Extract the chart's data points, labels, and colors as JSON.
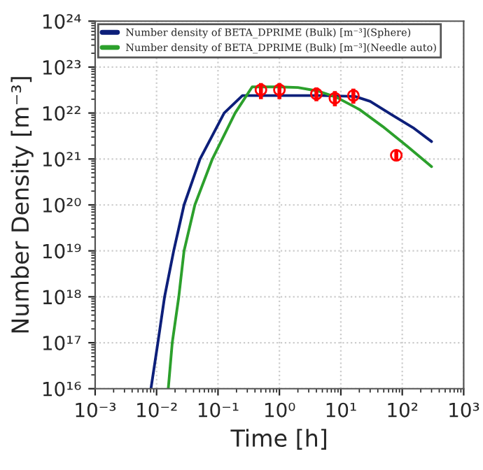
{
  "chart_data": {
    "type": "line",
    "xlabel": "Time [h]",
    "ylabel": "Number Density [m⁻³]",
    "log": "xy",
    "grid": true,
    "legend": "top left",
    "marker": "none",
    "line_style": "solid",
    "xlim": [
      0.001,
      1000
    ],
    "ylim": [
      1e+16,
      1e+24
    ],
    "xticks": [
      {
        "value": 0.001,
        "label": "10⁻³"
      },
      {
        "value": 0.01,
        "label": "10⁻²"
      },
      {
        "value": 0.1,
        "label": "10⁻¹"
      },
      {
        "value": 1,
        "label": "10⁰"
      },
      {
        "value": 10,
        "label": "10¹"
      },
      {
        "value": 100,
        "label": "10²"
      },
      {
        "value": 1000,
        "label": "10³"
      }
    ],
    "yticks": [
      {
        "value": 1e+16,
        "label": "10¹⁶"
      },
      {
        "value": 1e+17,
        "label": "10¹⁷"
      },
      {
        "value": 1e+18,
        "label": "10¹⁸"
      },
      {
        "value": 1e+19,
        "label": "10¹⁹"
      },
      {
        "value": 1e+20,
        "label": "10²⁰"
      },
      {
        "value": 1e+21,
        "label": "10²¹"
      },
      {
        "value": 1e+22,
        "label": "10²²"
      },
      {
        "value": 1e+23,
        "label": "10²³"
      },
      {
        "value": 1e+24,
        "label": "10²⁴"
      }
    ],
    "series": [
      {
        "name": "Number density of BETA_DPRIME (Bulk) [m⁻³](Sphere)",
        "color": "#0d1f7a",
        "x": [
          0.0081,
          0.0105,
          0.0135,
          0.019,
          0.028,
          0.051,
          0.126,
          0.25,
          1,
          5,
          17,
          30,
          69,
          150,
          300
        ],
        "values": [
          1e+16,
          1e+17,
          1e+18,
          1e+19,
          1e+20,
          1e+21,
          1e+22,
          2.4e+22,
          2.4e+22,
          2.4e+22,
          2.3e+22,
          1.8e+22,
          9e+21,
          4.8e+21,
          2.4e+21
        ]
      },
      {
        "name": "Number density of BETA_DPRIME (Bulk) [m⁻³](Needle auto)",
        "color": "#2ca02c",
        "x": [
          0.0155,
          0.018,
          0.023,
          0.028,
          0.042,
          0.081,
          0.19,
          0.36,
          1,
          2,
          4.3,
          8.5,
          20,
          48,
          120,
          300
        ],
        "values": [
          1e+16,
          1e+17,
          1e+18,
          1e+19,
          1e+20,
          1e+21,
          1e+22,
          3.7e+22,
          3.7e+22,
          3.6e+22,
          3e+22,
          2.2e+22,
          1.2e+22,
          5.1e+21,
          1.9e+21,
          6.8e+20
        ]
      },
      {
        "type": "scatter",
        "color": "#ff0000",
        "marker": "circle",
        "x": [
          0.5,
          1,
          4,
          8,
          16,
          80
        ],
        "values": [
          3.2e+22,
          3.2e+22,
          2.6e+22,
          2.1e+22,
          2.4e+22,
          1.2e+21
        ],
        "errors": [
          [
            2e+22,
            4.5e+22
          ],
          [
            2e+22,
            4.5e+22
          ],
          [
            1.8e+22,
            3.6e+22
          ],
          [
            1.4e+22,
            3e+22
          ],
          [
            1.6e+22,
            3.4e+22
          ],
          [
            9e+20,
            1.6e+21
          ]
        ]
      }
    ]
  }
}
